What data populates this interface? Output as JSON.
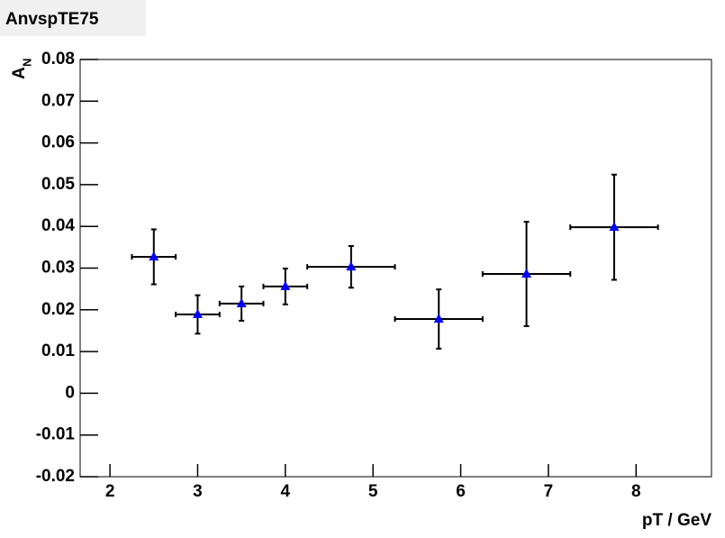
{
  "chart_data": {
    "type": "scatter",
    "title": "AnvspTE75",
    "xlabel": "pT / GeV",
    "ylabel": "A",
    "ylabel_subscript": "N",
    "x": [
      2.5,
      3,
      3.5,
      4,
      4.75,
      5.75,
      6.75,
      7.75
    ],
    "series": [
      {
        "color": "#0000ff",
        "values": [
          0.0327,
          0.0189,
          0.0215,
          0.0256,
          0.0303,
          0.0178,
          0.0286,
          0.0398
        ],
        "xerr": [
          0.25,
          0.25,
          0.25,
          0.25,
          0.5,
          0.5,
          0.5,
          0.5
        ],
        "yerr": [
          0.0066,
          0.0046,
          0.0041,
          0.0043,
          0.005,
          0.0071,
          0.0125,
          0.0126
        ]
      }
    ],
    "xlim": [
      1.66,
      8.86
    ],
    "ylim": [
      -0.02,
      0.08
    ],
    "xticks": [
      2,
      3,
      4,
      5,
      6,
      7,
      8
    ],
    "yticks": [
      -0.02,
      -0.01,
      0,
      0.01,
      0.02,
      0.03,
      0.04,
      0.05,
      0.06,
      0.07,
      0.08
    ]
  }
}
